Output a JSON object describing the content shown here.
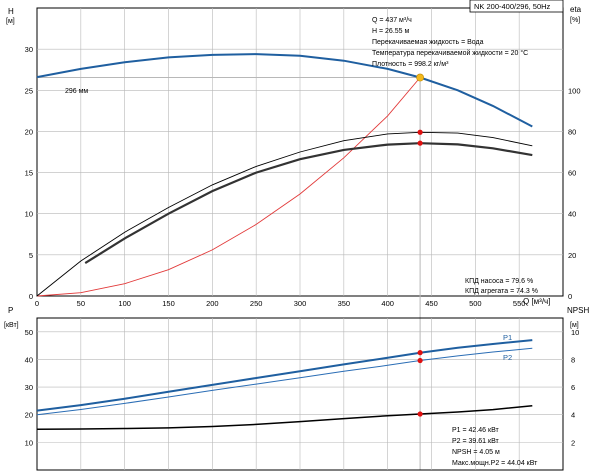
{
  "title": "NK 200-400/296, 50Hz",
  "colors": {
    "head": "#1f5fa0",
    "eta_pump": "#000000",
    "eta_unit": "#333333",
    "system": "#e23a3a",
    "p1": "#1f5fa0",
    "p2": "#2a6db5",
    "npsh": "#000000",
    "grid": "#b8b8b8",
    "marker": "#e01010",
    "duty": "#f2b81c"
  },
  "info_top": {
    "q": "Q = 437 м³/ч",
    "h": "H = 26.55 м",
    "liquid": "Перекачиваемая жидкость = Вода",
    "temp": "Температура перекачиваемой жидкости = 20 °C",
    "density": "Плотность = 998.2 кг/м³"
  },
  "eff_labels": {
    "pump": "КПД насоса = 79.6 %",
    "unit": "КПД агрегата = 74.3 %"
  },
  "info_bottom": {
    "p1": "P1 = 42.46 кВт",
    "p2": "P2 = 39.61 кВт",
    "npsh": "NPSH = 4.05 м",
    "pmax": "Макс.мощн.P2 = 44.04 кВт"
  },
  "chart_data": [
    {
      "type": "line",
      "name": "head-efficiency",
      "x_label": "Q [м³/ч]",
      "y_label_left": "H\n[м]",
      "y_label_right": "eta\n[%]",
      "x_range": [
        0,
        600
      ],
      "x_ticks": [
        0,
        50,
        100,
        150,
        200,
        250,
        300,
        350,
        400,
        450,
        500,
        550
      ],
      "y_left_range": [
        0,
        35
      ],
      "y_left_ticks": [
        0,
        5,
        10,
        15,
        20,
        25,
        30
      ],
      "y_right_range": [
        0,
        140
      ],
      "y_right_ticks": [
        0,
        20,
        40,
        60,
        80,
        100
      ],
      "grid": true,
      "impeller_label": "296 мм",
      "series": [
        {
          "name": "H",
          "axis": "left",
          "x": [
            0,
            50,
            100,
            150,
            200,
            250,
            300,
            350,
            400,
            437,
            480,
            520,
            565
          ],
          "y": [
            26.6,
            27.6,
            28.4,
            29.0,
            29.3,
            29.4,
            29.2,
            28.6,
            27.6,
            26.55,
            25.0,
            23.1,
            20.6
          ]
        },
        {
          "name": "КПД насоса",
          "axis": "right",
          "x": [
            0,
            50,
            100,
            150,
            200,
            250,
            300,
            350,
            400,
            437,
            480,
            520,
            565
          ],
          "y": [
            0,
            17,
            31,
            43,
            54,
            63,
            70,
            75.5,
            78.8,
            79.6,
            79.2,
            77.0,
            73.0
          ]
        },
        {
          "name": "КПД агрегата",
          "axis": "right",
          "x": [
            55,
            100,
            150,
            200,
            250,
            300,
            350,
            400,
            437,
            480,
            520,
            565
          ],
          "y": [
            16,
            28,
            40,
            51,
            60,
            66.5,
            71,
            73.6,
            74.3,
            73.7,
            71.8,
            68.5
          ]
        },
        {
          "name": "system",
          "axis": "left",
          "x": [
            0,
            50,
            100,
            150,
            200,
            250,
            300,
            350,
            400,
            437
          ],
          "y": [
            0,
            0.4,
            1.5,
            3.2,
            5.6,
            8.7,
            12.4,
            16.8,
            21.9,
            26.55
          ]
        }
      ],
      "duty_point": {
        "x": 437,
        "y": 26.55
      },
      "markers": [
        {
          "x": 437,
          "y": 79.6,
          "axis": "right"
        },
        {
          "x": 437,
          "y": 74.3,
          "axis": "right"
        }
      ]
    },
    {
      "type": "line",
      "name": "power-npsh",
      "y_label_left": "P\n[кВт]",
      "y_label_right": "NPSH\n[м]",
      "x_range": [
        0,
        600
      ],
      "y_left_range": [
        0,
        55
      ],
      "y_left_ticks": [
        10,
        20,
        30,
        40,
        50
      ],
      "y_right_range": [
        0,
        11
      ],
      "y_right_ticks": [
        2,
        4,
        6,
        8,
        10
      ],
      "grid": true,
      "series": [
        {
          "name": "P1",
          "axis": "left",
          "x": [
            0,
            50,
            100,
            150,
            200,
            250,
            300,
            350,
            400,
            437,
            480,
            520,
            565
          ],
          "y": [
            21.5,
            23.5,
            25.8,
            28.3,
            30.8,
            33.3,
            35.7,
            38.2,
            40.6,
            42.46,
            44.2,
            45.6,
            47.0
          ]
        },
        {
          "name": "P2",
          "axis": "left",
          "x": [
            0,
            50,
            100,
            150,
            200,
            250,
            300,
            350,
            400,
            437,
            480,
            520,
            565
          ],
          "y": [
            20.0,
            21.9,
            24.1,
            26.4,
            28.8,
            31.1,
            33.4,
            35.7,
            37.9,
            39.61,
            41.3,
            42.7,
            44.04
          ]
        },
        {
          "name": "NPSH",
          "axis": "right",
          "x": [
            0,
            50,
            100,
            150,
            200,
            250,
            300,
            350,
            400,
            437,
            480,
            520,
            565
          ],
          "y": [
            2.95,
            2.97,
            3.0,
            3.05,
            3.15,
            3.3,
            3.5,
            3.72,
            3.93,
            4.05,
            4.2,
            4.37,
            4.65
          ]
        }
      ],
      "series_labels": [
        "P1",
        "P2"
      ],
      "markers": [
        {
          "x": 437,
          "y": 42.46,
          "axis": "left"
        },
        {
          "x": 437,
          "y": 39.61,
          "axis": "left"
        },
        {
          "x": 437,
          "y": 4.05,
          "axis": "right"
        }
      ]
    }
  ]
}
